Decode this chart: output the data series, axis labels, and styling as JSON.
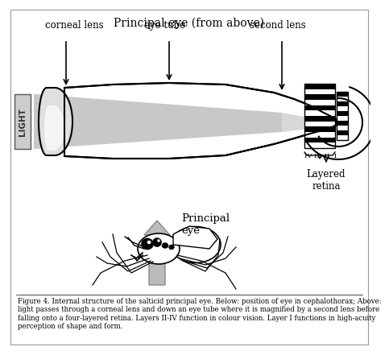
{
  "title": "Principal eye (from above)",
  "bg_color": "#ffffff",
  "label_corneal_lens": "corneal lens",
  "label_eye_tube": "eye tube",
  "label_second_lens": "second lens",
  "label_layered_retina": "Layered\nretina",
  "label_principal_eye": "Principal\neye",
  "label_light": "LIGHT",
  "label_layers": "IV III II  I",
  "caption": "Figure 4. Internal structure of the salticid principal eye. Below: position of eye in cephalothorax; Above:\nlight passes through a corneal lens and down an eye tube where it is magnified by a second lens before\nfalling onto a four-layered retina. Layers II-IV function in colour vision. Layer I functions in high-acuity\nperception of shape and form."
}
